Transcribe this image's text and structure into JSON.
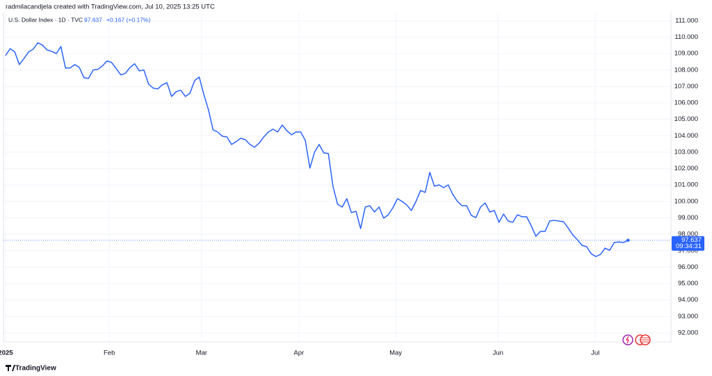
{
  "chart_data": {
    "type": "line",
    "header": "radmilacandjela created with TradingView.com, Jul 10, 2025 13:25 UTC",
    "legend_title": "U.S. Dollar Index · 1D · TVC",
    "last_value": 97.637,
    "change_label": "+0.167 (+0.17%)",
    "countdown": "09:34:31",
    "brand": "TradingView",
    "x": [
      0,
      1,
      2,
      3,
      4,
      5,
      6,
      7,
      8,
      9,
      10,
      11,
      12,
      13,
      14,
      15,
      16,
      17,
      18,
      19,
      20,
      21,
      22,
      23,
      24,
      25,
      26,
      27,
      28,
      29,
      30,
      31,
      32,
      33,
      34,
      35,
      36,
      37,
      38,
      39,
      40,
      41,
      42,
      43,
      44,
      45,
      46,
      47,
      48,
      49,
      50,
      51,
      52,
      53,
      54,
      55,
      56,
      57,
      58,
      59,
      60,
      61,
      62,
      63,
      64,
      65,
      66,
      67,
      68,
      69,
      70,
      71,
      72,
      73,
      74,
      75,
      76,
      77,
      78,
      79,
      80,
      81,
      82,
      83,
      84,
      85,
      86,
      87,
      88,
      89,
      90,
      91,
      92,
      93,
      94,
      95,
      96,
      97,
      98,
      99,
      100,
      101,
      102,
      103,
      104,
      105,
      106,
      107,
      108,
      109,
      110,
      111,
      112,
      113,
      114,
      115,
      116,
      117,
      118,
      119,
      120,
      121,
      122,
      123,
      124,
      125,
      126,
      127,
      128,
      129,
      130,
      131,
      132,
      133,
      134,
      135
    ],
    "series": [
      {
        "name": "U.S. Dollar Index",
        "color": "#2962ff",
        "values": [
          108.88,
          109.3,
          109.1,
          108.33,
          108.7,
          109.1,
          109.27,
          109.65,
          109.52,
          109.22,
          109.14,
          109.0,
          109.43,
          108.12,
          108.12,
          108.33,
          108.16,
          107.53,
          107.49,
          108.0,
          108.04,
          108.25,
          108.55,
          108.46,
          108.08,
          107.7,
          107.8,
          108.16,
          108.38,
          107.95,
          108.0,
          107.15,
          106.9,
          106.85,
          107.1,
          107.23,
          106.39,
          106.68,
          106.77,
          106.39,
          106.6,
          107.36,
          107.57,
          106.51,
          105.58,
          104.36,
          104.23,
          103.97,
          103.93,
          103.47,
          103.64,
          103.85,
          103.76,
          103.47,
          103.3,
          103.55,
          103.93,
          104.23,
          104.4,
          104.23,
          104.65,
          104.31,
          104.06,
          104.23,
          104.23,
          103.72,
          102.03,
          103.0,
          103.47,
          102.96,
          102.92,
          100.93,
          99.83,
          99.66,
          100.17,
          99.32,
          99.4,
          98.35,
          99.66,
          99.74,
          99.36,
          99.66,
          98.98,
          99.19,
          99.62,
          100.17,
          100.0,
          99.79,
          99.45,
          100.0,
          100.67,
          100.55,
          101.77,
          100.93,
          101.01,
          100.84,
          101.01,
          100.42,
          100.0,
          99.74,
          99.74,
          99.15,
          99.02,
          99.66,
          99.91,
          99.36,
          99.45,
          98.73,
          99.23,
          98.81,
          98.73,
          99.19,
          99.07,
          99.07,
          98.52,
          97.88,
          98.18,
          98.18,
          98.81,
          98.85,
          98.81,
          98.77,
          98.39,
          97.97,
          97.67,
          97.33,
          97.25,
          96.82,
          96.65,
          96.77,
          97.16,
          97.03,
          97.5,
          97.54,
          97.5,
          97.637
        ]
      }
    ],
    "xlim": [
      -0.45,
      144.3
    ],
    "xticks": [
      {
        "value": 0,
        "label": "2025"
      },
      {
        "value": 22.5,
        "label": "Feb"
      },
      {
        "value": 42.5,
        "label": "Mar"
      },
      {
        "value": 63.6,
        "label": "Apr"
      },
      {
        "value": 84.6,
        "label": "May"
      },
      {
        "value": 106.8,
        "label": "Jun"
      },
      {
        "value": 127.9,
        "label": "Jul"
      }
    ],
    "ylim": [
      91.45,
      111.5
    ],
    "yticks": [
      {
        "value": 92,
        "label": "92.000"
      },
      {
        "value": 93,
        "label": "93.000"
      },
      {
        "value": 94,
        "label": "94.000"
      },
      {
        "value": 95,
        "label": "95.000"
      },
      {
        "value": 96,
        "label": "96.000"
      },
      {
        "value": 97,
        "label": "97.000"
      },
      {
        "value": 98,
        "label": "98.000"
      },
      {
        "value": 99,
        "label": "99.000"
      },
      {
        "value": 100,
        "label": "100.000"
      },
      {
        "value": 101,
        "label": "101.000"
      },
      {
        "value": 102,
        "label": "102.000"
      },
      {
        "value": 103,
        "label": "103.000"
      },
      {
        "value": 104,
        "label": "104.000"
      },
      {
        "value": 105,
        "label": "105.000"
      },
      {
        "value": 106,
        "label": "106.000"
      },
      {
        "value": 107,
        "label": "107.000"
      },
      {
        "value": 108,
        "label": "108.000"
      },
      {
        "value": 109,
        "label": "109.000"
      },
      {
        "value": 110,
        "label": "110.000"
      },
      {
        "value": 111,
        "label": "111.000"
      }
    ],
    "grid": true
  }
}
